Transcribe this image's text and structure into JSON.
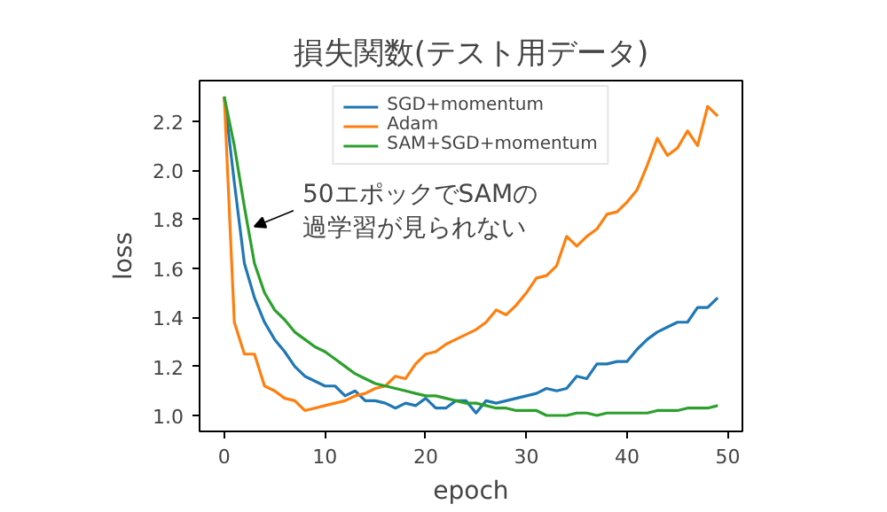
{
  "chart_data": {
    "type": "line",
    "title": "損失関数(テスト用データ)",
    "xlabel": "epoch",
    "ylabel": "loss",
    "x": [
      0,
      1,
      2,
      3,
      4,
      5,
      6,
      7,
      8,
      9,
      10,
      11,
      12,
      13,
      14,
      15,
      16,
      17,
      18,
      19,
      20,
      21,
      22,
      23,
      24,
      25,
      26,
      27,
      28,
      29,
      30,
      31,
      32,
      33,
      34,
      35,
      36,
      37,
      38,
      39,
      40,
      41,
      42,
      43,
      44,
      45,
      46,
      47,
      48,
      49
    ],
    "series": [
      {
        "name": "SGD+momentum",
        "color": "#1f77b4",
        "values": [
          2.3,
          1.95,
          1.62,
          1.48,
          1.38,
          1.31,
          1.26,
          1.2,
          1.16,
          1.14,
          1.12,
          1.12,
          1.08,
          1.1,
          1.06,
          1.06,
          1.05,
          1.03,
          1.05,
          1.04,
          1.07,
          1.03,
          1.03,
          1.06,
          1.06,
          1.01,
          1.06,
          1.05,
          1.06,
          1.07,
          1.08,
          1.09,
          1.11,
          1.1,
          1.11,
          1.16,
          1.15,
          1.21,
          1.21,
          1.22,
          1.22,
          1.27,
          1.31,
          1.34,
          1.36,
          1.38,
          1.38,
          1.44,
          1.44,
          1.48
        ]
      },
      {
        "name": "Adam",
        "color": "#ff7f0e",
        "values": [
          2.3,
          1.38,
          1.25,
          1.25,
          1.12,
          1.1,
          1.07,
          1.06,
          1.02,
          1.03,
          1.04,
          1.05,
          1.06,
          1.08,
          1.09,
          1.11,
          1.12,
          1.16,
          1.15,
          1.21,
          1.25,
          1.26,
          1.29,
          1.31,
          1.33,
          1.35,
          1.38,
          1.43,
          1.41,
          1.45,
          1.5,
          1.56,
          1.57,
          1.61,
          1.73,
          1.69,
          1.73,
          1.76,
          1.82,
          1.83,
          1.87,
          1.92,
          2.02,
          2.13,
          2.06,
          2.09,
          2.16,
          2.1,
          2.26,
          2.22
        ]
      },
      {
        "name": "SAM+SGD+momentum",
        "color": "#2ca02c",
        "values": [
          2.3,
          2.1,
          1.85,
          1.62,
          1.5,
          1.43,
          1.39,
          1.34,
          1.31,
          1.28,
          1.26,
          1.23,
          1.2,
          1.17,
          1.15,
          1.13,
          1.12,
          1.11,
          1.1,
          1.09,
          1.08,
          1.08,
          1.07,
          1.06,
          1.05,
          1.05,
          1.04,
          1.03,
          1.03,
          1.02,
          1.02,
          1.02,
          1.0,
          1.0,
          1.0,
          1.01,
          1.01,
          1.0,
          1.01,
          1.01,
          1.01,
          1.01,
          1.01,
          1.02,
          1.02,
          1.02,
          1.03,
          1.03,
          1.03,
          1.04
        ]
      }
    ],
    "xlim": [
      -2.45,
      51.45
    ],
    "ylim": [
      0.935,
      2.365
    ],
    "xticks": [
      0,
      10,
      20,
      30,
      40,
      50
    ],
    "yticks": [
      {
        "value": 1.0,
        "label": "1.0"
      },
      {
        "value": 1.2,
        "label": "1.2"
      },
      {
        "value": 1.4,
        "label": "1.4"
      },
      {
        "value": 1.6,
        "label": "1.6"
      },
      {
        "value": 1.8,
        "label": "1.8"
      },
      {
        "value": 2.0,
        "label": "2.0"
      },
      {
        "value": 2.2,
        "label": "2.2"
      }
    ],
    "annotations": [
      {
        "text": "50エポックでSAMの過学習が見られない",
        "x": 3,
        "y": 1.77
      }
    ],
    "grid": false,
    "legend": "top"
  }
}
